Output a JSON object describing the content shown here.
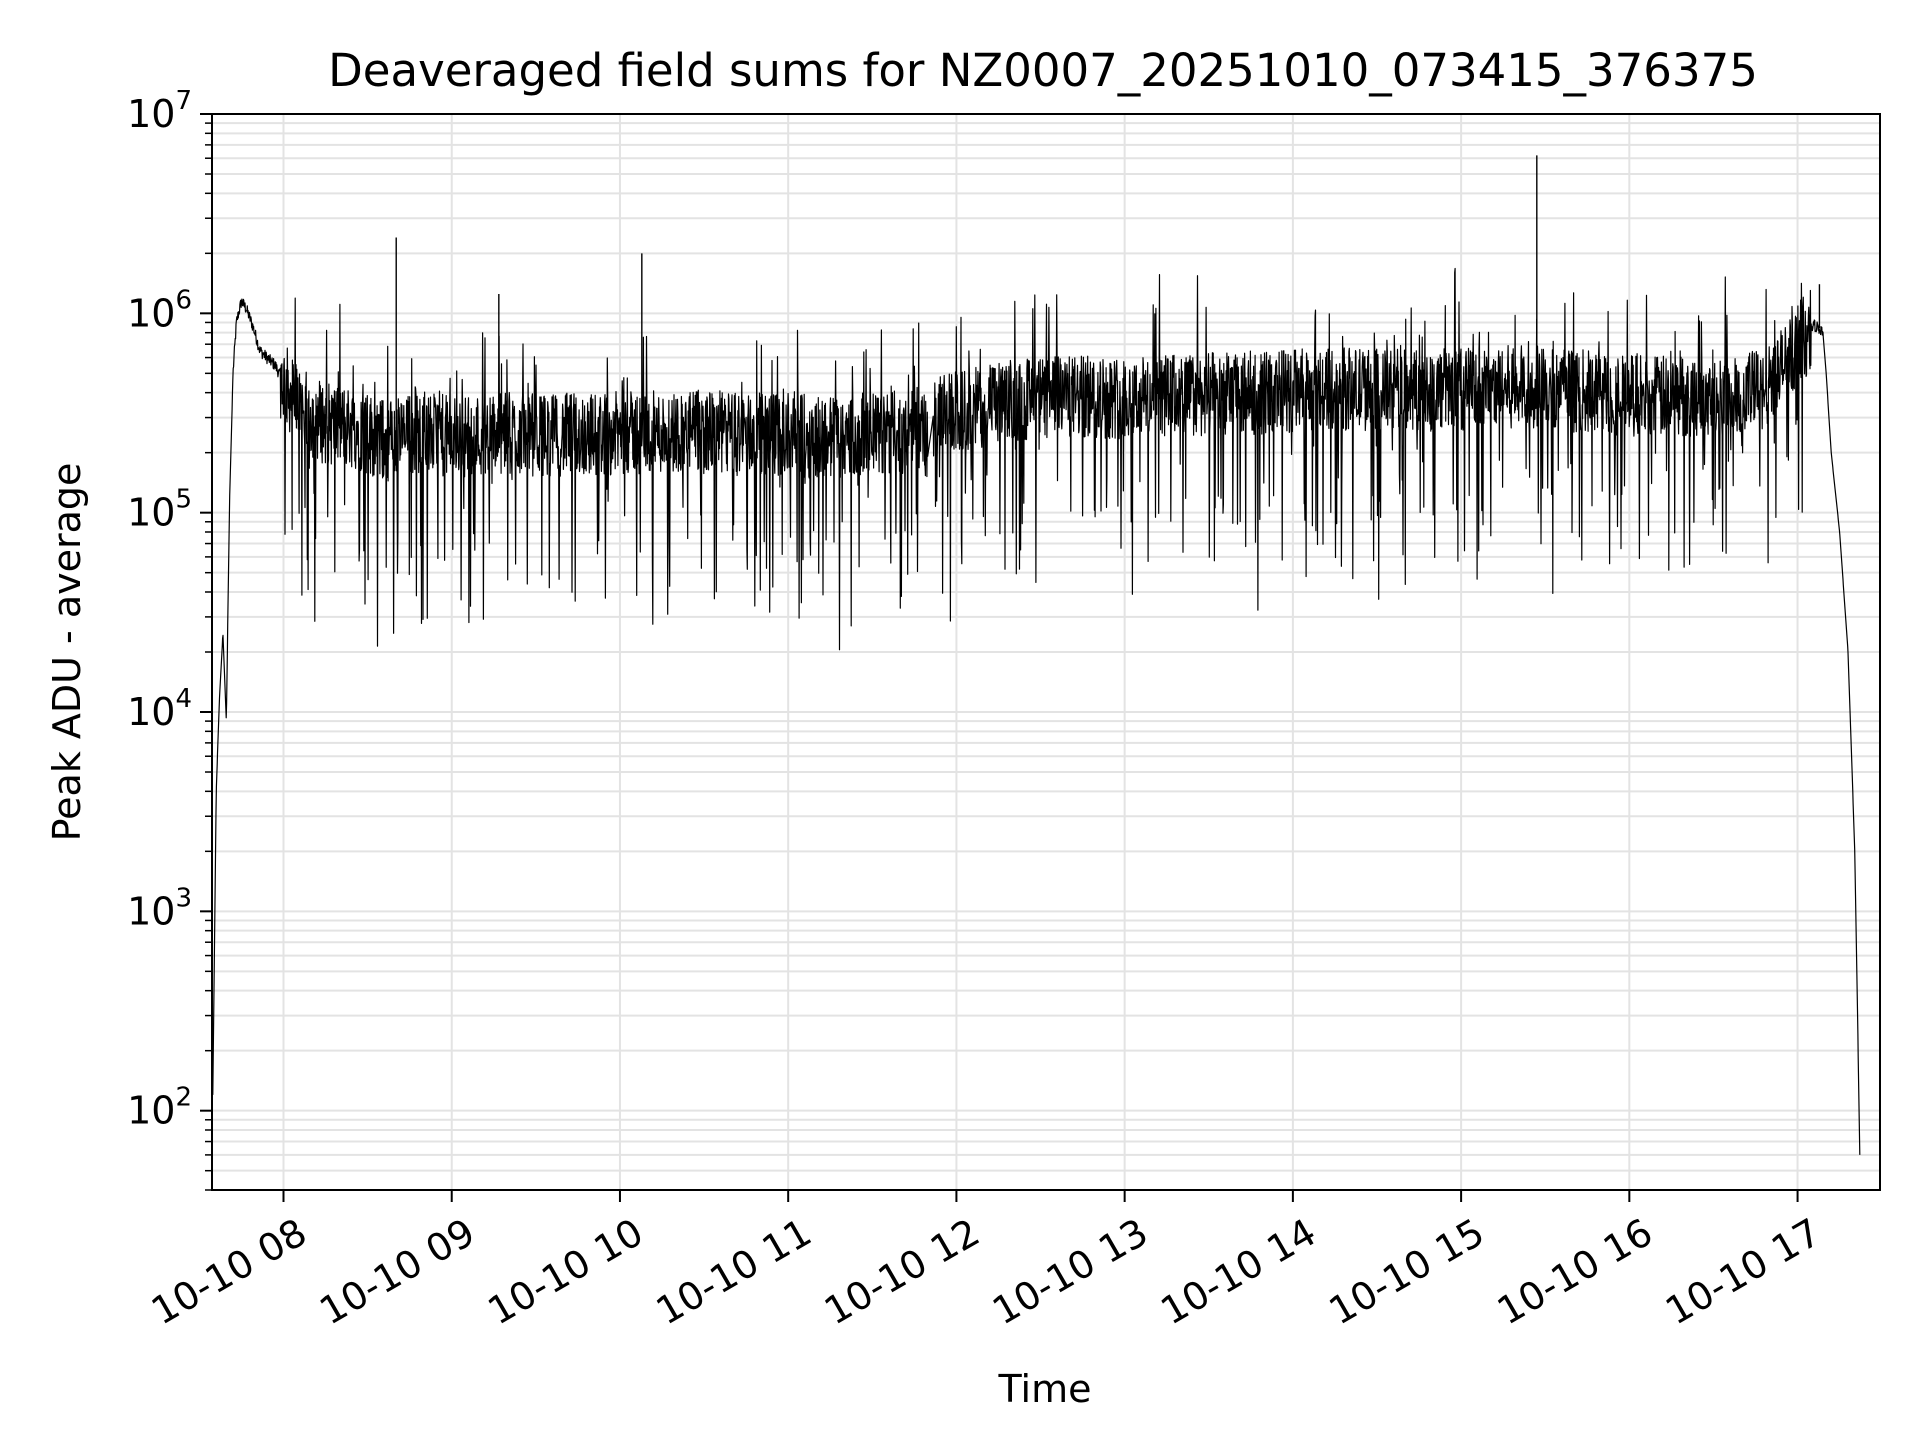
{
  "chart_data": {
    "type": "line",
    "title": "Deaveraged field sums for NZ0007_20251010_073415_376375",
    "xlabel": "Time",
    "ylabel": "Peak ADU - average",
    "yscale": "log",
    "ylim": [
      40,
      10000000
    ],
    "xlim_hours": [
      7.575,
      17.49
    ],
    "grid": true,
    "legend": "none",
    "colors": {
      "line": "#000000",
      "grid": "#e3e3e3",
      "axes": "#000000",
      "background": "#ffffff"
    },
    "x_ticks": [
      {
        "value": 8,
        "label": "10-10 08"
      },
      {
        "value": 9,
        "label": "10-10 09"
      },
      {
        "value": 10,
        "label": "10-10 10"
      },
      {
        "value": 11,
        "label": "10-10 11"
      },
      {
        "value": 12,
        "label": "10-10 12"
      },
      {
        "value": 13,
        "label": "10-10 13"
      },
      {
        "value": 14,
        "label": "10-10 14"
      },
      {
        "value": 15,
        "label": "10-10 15"
      },
      {
        "value": 16,
        "label": "10-10 16"
      },
      {
        "value": 17,
        "label": "10-10 17"
      }
    ],
    "y_ticks": [
      {
        "value": 100,
        "base": "10",
        "exp": "2"
      },
      {
        "value": 1000,
        "base": "10",
        "exp": "3"
      },
      {
        "value": 10000,
        "base": "10",
        "exp": "4"
      },
      {
        "value": 100000,
        "base": "10",
        "exp": "5"
      },
      {
        "value": 1000000,
        "base": "10",
        "exp": "6"
      },
      {
        "value": 10000000,
        "base": "10",
        "exp": "7"
      }
    ],
    "series": [
      {
        "name": "Deaveraged field sum",
        "time_hours": [
          7.58,
          7.6,
          7.62,
          7.64,
          7.66,
          7.68,
          7.7,
          7.72,
          7.75,
          7.78,
          7.82,
          7.86,
          7.9,
          7.95,
          8.0,
          8.1,
          8.25,
          8.4,
          8.6,
          8.8,
          9.0,
          9.3,
          9.6,
          10.0,
          10.4,
          10.8,
          11.2,
          11.6,
          11.8,
          11.85,
          11.9,
          12.0,
          12.3,
          12.6,
          13.0,
          13.4,
          13.8,
          14.2,
          14.6,
          15.0,
          15.4,
          15.8,
          16.2,
          16.6,
          16.8,
          16.9,
          17.0,
          17.1,
          17.15,
          17.17,
          17.2,
          17.25,
          17.3,
          17.34,
          17.36,
          17.37
        ],
        "values": [
          120,
          4000,
          12000,
          25000,
          9000,
          120000,
          500000,
          900000,
          1150000,
          1050000,
          850000,
          650000,
          600000,
          550000,
          450000,
          330000,
          280000,
          270000,
          230000,
          250000,
          240000,
          250000,
          245000,
          250000,
          255000,
          250000,
          240000,
          250000,
          260000,
          200000,
          300000,
          320000,
          360000,
          380000,
          380000,
          390000,
          400000,
          420000,
          410000,
          420000,
          430000,
          400000,
          380000,
          400000,
          410000,
          520000,
          700000,
          870000,
          820000,
          500000,
          200000,
          80000,
          20000,
          2000,
          200,
          60
        ],
        "spikes": [
          {
            "time_hours": 8.67,
            "value": 2400000
          },
          {
            "time_hours": 9.28,
            "value": 1250000
          },
          {
            "time_hours": 10.13,
            "value": 2000000
          },
          {
            "time_hours": 15.45,
            "value": 6200000
          },
          {
            "time_hours": 17.13,
            "value": 1400000
          }
        ]
      }
    ]
  }
}
